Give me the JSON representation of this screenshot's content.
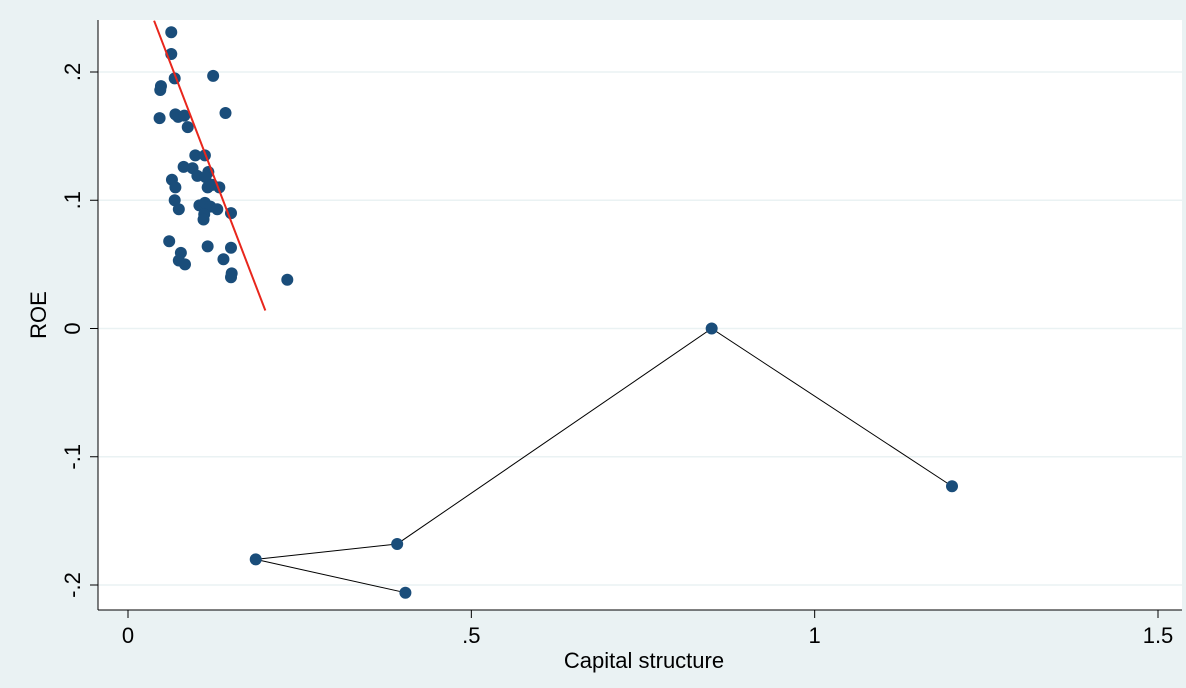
{
  "chart_data": {
    "type": "scatter",
    "title": "",
    "xlabel": "Capital structure",
    "ylabel": "ROE",
    "xlim": [
      0,
      1.5
    ],
    "ylim": [
      -0.2,
      0.2
    ],
    "x_ticks": [
      0,
      0.5,
      1,
      1.5
    ],
    "x_tick_labels": [
      "0",
      ".5",
      "1",
      "1.5"
    ],
    "y_ticks": [
      -0.2,
      -0.1,
      0,
      0.1,
      0.2
    ],
    "y_tick_labels": [
      "-.2",
      "-.1",
      "0",
      ".1",
      ".2"
    ],
    "grid": true,
    "legend": "none",
    "colors": {
      "background": "#eaf2f3",
      "plot_area": "#ffffff",
      "grid": "#eaf2f3",
      "marker": "#1a4d7a",
      "fit_line": "#e8261c",
      "connector": "#000000"
    },
    "series": [
      {
        "kind": "points",
        "points": [
          [
            0.063,
            0.231
          ],
          [
            0.063,
            0.214
          ],
          [
            0.068,
            0.195
          ],
          [
            0.124,
            0.197
          ],
          [
            0.048,
            0.189
          ],
          [
            0.047,
            0.186
          ],
          [
            0.046,
            0.164
          ],
          [
            0.069,
            0.167
          ],
          [
            0.073,
            0.165
          ],
          [
            0.082,
            0.166
          ],
          [
            0.087,
            0.157
          ],
          [
            0.142,
            0.168
          ],
          [
            0.098,
            0.135
          ],
          [
            0.112,
            0.135
          ],
          [
            0.081,
            0.126
          ],
          [
            0.094,
            0.125
          ],
          [
            0.101,
            0.119
          ],
          [
            0.117,
            0.122
          ],
          [
            0.113,
            0.118
          ],
          [
            0.064,
            0.116
          ],
          [
            0.069,
            0.11
          ],
          [
            0.116,
            0.11
          ],
          [
            0.123,
            0.112
          ],
          [
            0.133,
            0.11
          ],
          [
            0.068,
            0.1
          ],
          [
            0.104,
            0.096
          ],
          [
            0.112,
            0.098
          ],
          [
            0.12,
            0.095
          ],
          [
            0.13,
            0.093
          ],
          [
            0.074,
            0.093
          ],
          [
            0.111,
            0.089
          ],
          [
            0.11,
            0.085
          ],
          [
            0.15,
            0.09
          ],
          [
            0.06,
            0.068
          ],
          [
            0.116,
            0.064
          ],
          [
            0.15,
            0.063
          ],
          [
            0.077,
            0.059
          ],
          [
            0.074,
            0.053
          ],
          [
            0.083,
            0.05
          ],
          [
            0.139,
            0.054
          ],
          [
            0.151,
            0.043
          ],
          [
            0.15,
            0.04
          ],
          [
            0.232,
            0.038
          ]
        ]
      },
      {
        "kind": "connected",
        "points": [
          [
            0.404,
            -0.206
          ],
          [
            0.186,
            -0.18
          ],
          [
            0.392,
            -0.168
          ],
          [
            0.85,
            0.0
          ],
          [
            1.2,
            -0.123
          ]
        ]
      },
      {
        "kind": "fit-line",
        "points": [
          [
            0.038,
            0.24
          ],
          [
            0.2,
            0.014
          ]
        ]
      }
    ]
  }
}
